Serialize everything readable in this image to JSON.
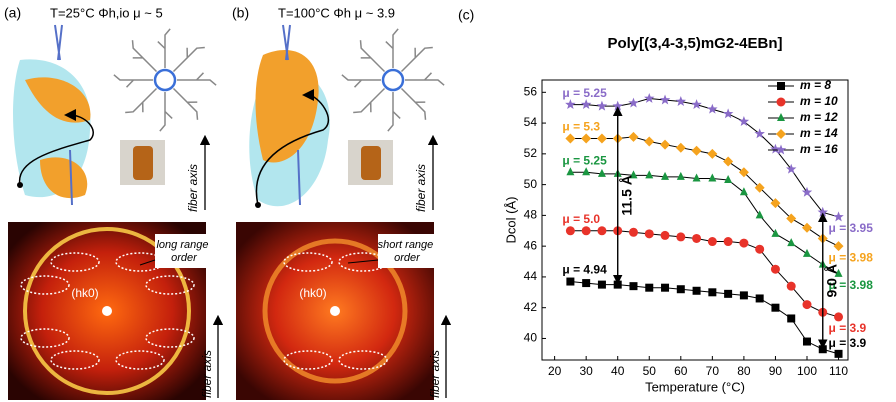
{
  "panels": [
    {
      "label": "(a)",
      "title": "T=25°C Φh,io  μ ~ 5",
      "fiber_axis_top": "fiber axis",
      "fiber_axis_bottom": "fiber axis",
      "callout": "long range order",
      "reflection": "(hk0)"
    },
    {
      "label": "(b)",
      "title": "T=100°C Φh  μ ~ 3.9",
      "fiber_axis_top": "fiber axis",
      "fiber_axis_bottom": "fiber axis",
      "callout": "short range order",
      "reflection": "(hk0)"
    }
  ],
  "chart_data": {
    "type": "line",
    "panel_label": "(c)",
    "title": "Poly[(3,4-3,5)mG2-4EBn]",
    "x_label": "Temperature (°C)",
    "y_label": "Dcol (Å)",
    "x": [
      25,
      30,
      35,
      40,
      45,
      50,
      55,
      60,
      65,
      70,
      75,
      80,
      85,
      90,
      95,
      100,
      105,
      110
    ],
    "xlim": [
      16,
      113
    ],
    "ylim": [
      38.6,
      56.8
    ],
    "xticks": [
      20,
      30,
      40,
      50,
      60,
      70,
      80,
      90,
      100,
      110
    ],
    "yticks": [
      40,
      42,
      44,
      46,
      48,
      50,
      52,
      54,
      56
    ],
    "legend": "upper right",
    "series": [
      {
        "name": "m = 8",
        "color": "#000000",
        "marker": "square",
        "values": [
          43.7,
          43.6,
          43.5,
          43.5,
          43.4,
          43.3,
          43.3,
          43.2,
          43.1,
          43.0,
          42.9,
          42.8,
          42.6,
          42.0,
          41.3,
          39.8,
          39.3,
          39.0
        ]
      },
      {
        "name": "m = 10",
        "color": "#e8332a",
        "marker": "circle",
        "values": [
          47.0,
          47.0,
          47.0,
          47.0,
          46.9,
          46.8,
          46.7,
          46.6,
          46.5,
          46.3,
          46.3,
          46.2,
          45.8,
          44.5,
          43.4,
          42.2,
          41.7,
          41.4
        ]
      },
      {
        "name": "m = 12",
        "color": "#1a9641",
        "marker": "triangle",
        "values": [
          50.8,
          50.8,
          50.7,
          50.7,
          50.6,
          50.6,
          50.5,
          50.5,
          50.4,
          50.4,
          50.3,
          49.5,
          48.0,
          46.8,
          46.2,
          45.5,
          44.8,
          44.2
        ]
      },
      {
        "name": "m = 14",
        "color": "#f5a31e",
        "marker": "diamond",
        "values": [
          53.0,
          53.0,
          53.0,
          53.0,
          53.1,
          52.8,
          52.6,
          52.4,
          52.2,
          52.0,
          51.5,
          50.8,
          49.8,
          48.8,
          47.8,
          47.2,
          46.5,
          46.0
        ]
      },
      {
        "name": "m = 16",
        "color": "#8a6cc8",
        "marker": "star",
        "values": [
          55.2,
          55.2,
          55.1,
          55.1,
          55.3,
          55.6,
          55.5,
          55.4,
          55.2,
          54.9,
          54.6,
          54.1,
          53.3,
          52.3,
          51.0,
          49.5,
          48.2,
          47.9
        ]
      }
    ],
    "start_labels": [
      "μ = 4.94",
      "μ = 5.0",
      "μ = 5.25",
      "μ = 5.3",
      "μ = 5.25"
    ],
    "end_labels": [
      "μ = 3.9",
      "μ = 3.9",
      "μ = 3.98",
      "μ = 3.98",
      "μ = 3.95"
    ],
    "gap_labels": [
      "11.5 Å",
      "9.0 Å"
    ]
  }
}
